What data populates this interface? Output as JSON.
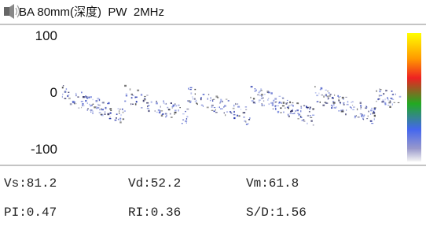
{
  "header": {
    "title": "BA 80mm(深度)  PW  2MHz"
  },
  "scale": {
    "labels": [
      "100",
      "0",
      "-100"
    ]
  },
  "measurements": {
    "rows": [
      [
        "Vs:81.2",
        "Vd:52.2",
        "Vm:61.8"
      ],
      [
        "PI:0.47",
        "RI:0.36",
        "S/D:1.56"
      ]
    ]
  }
}
